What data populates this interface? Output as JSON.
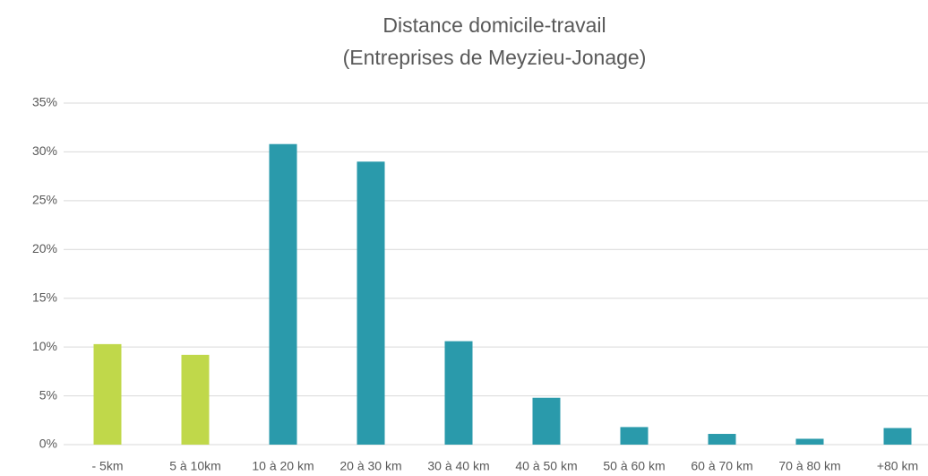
{
  "chart_data": {
    "type": "bar",
    "title": "Distance domicile-travail",
    "subtitle": "(Entreprises de Meyzieu-Jonage)",
    "categories": [
      "- 5km",
      "5 à 10km",
      "10 à 20 km",
      "20 à 30 km",
      "30 à 40 km",
      "40 à 50 km",
      "50 à 60 km",
      "60 à 70 km",
      "70 à 80 km",
      "+80 km"
    ],
    "values": [
      10.3,
      9.2,
      30.8,
      29.0,
      10.6,
      4.8,
      1.8,
      1.1,
      0.6,
      1.7
    ],
    "colors": [
      "#c0d84a",
      "#c0d84a",
      "#2a9aab",
      "#2a9aab",
      "#2a9aab",
      "#2a9aab",
      "#2a9aab",
      "#2a9aab",
      "#2a9aab",
      "#2a9aab"
    ],
    "ylim": [
      0,
      35
    ],
    "yticks": [
      {
        "value": 0,
        "label": "0%"
      },
      {
        "value": 5,
        "label": "5%"
      },
      {
        "value": 10,
        "label": "10%"
      },
      {
        "value": 15,
        "label": "15%"
      },
      {
        "value": 20,
        "label": "20%"
      },
      {
        "value": 25,
        "label": "25%"
      },
      {
        "value": 30,
        "label": "30%"
      },
      {
        "value": 35,
        "label": "35%"
      }
    ],
    "grid": true
  }
}
